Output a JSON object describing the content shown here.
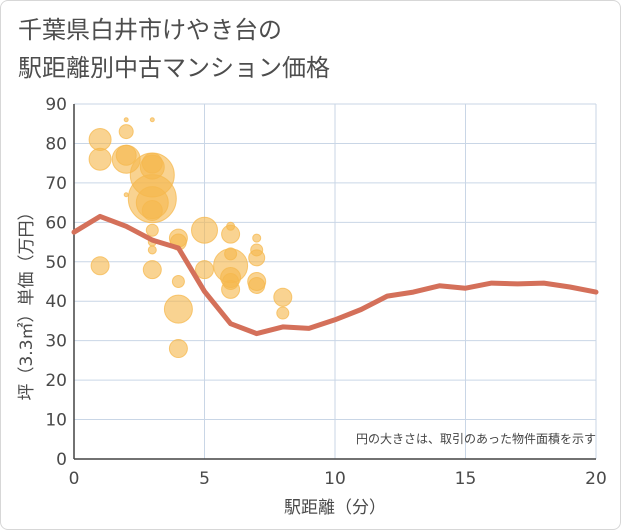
{
  "chart_data": {
    "type": "scatter",
    "title_lines": [
      "千葉県白井市けやき台の",
      "駅距離別中古マンション価格"
    ],
    "xlabel": "駅距離（分）",
    "ylabel": "坪（3.3㎡）単価（万円）",
    "xlim": [
      0,
      20
    ],
    "ylim": [
      0,
      90
    ],
    "xticks": [
      0,
      5,
      10,
      15,
      20
    ],
    "yticks": [
      0,
      10,
      20,
      30,
      40,
      50,
      60,
      70,
      80,
      90
    ],
    "grid": true,
    "annotation": "円の大きさは、取引のあった物件面積を示す",
    "colors": {
      "bubble": "#f6b84d",
      "line": "#d4705a",
      "grid": "#c9d6e6"
    },
    "bubbles": [
      {
        "x": 1,
        "y": 81,
        "size": 11
      },
      {
        "x": 1,
        "y": 76,
        "size": 11
      },
      {
        "x": 1,
        "y": 49,
        "size": 9
      },
      {
        "x": 2,
        "y": 86,
        "size": 2
      },
      {
        "x": 2,
        "y": 83,
        "size": 7
      },
      {
        "x": 2,
        "y": 77,
        "size": 10
      },
      {
        "x": 2,
        "y": 76,
        "size": 14
      },
      {
        "x": 2,
        "y": 67,
        "size": 2
      },
      {
        "x": 3,
        "y": 86,
        "size": 2
      },
      {
        "x": 3,
        "y": 75,
        "size": 10
      },
      {
        "x": 3,
        "y": 74,
        "size": 12
      },
      {
        "x": 3,
        "y": 72,
        "size": 22
      },
      {
        "x": 3,
        "y": 66,
        "size": 24
      },
      {
        "x": 3,
        "y": 65,
        "size": 16
      },
      {
        "x": 3,
        "y": 63,
        "size": 10
      },
      {
        "x": 3,
        "y": 58,
        "size": 6
      },
      {
        "x": 3,
        "y": 55,
        "size": 4
      },
      {
        "x": 3,
        "y": 53,
        "size": 4
      },
      {
        "x": 3,
        "y": 48,
        "size": 9
      },
      {
        "x": 4,
        "y": 56,
        "size": 9
      },
      {
        "x": 4,
        "y": 55,
        "size": 8
      },
      {
        "x": 4,
        "y": 45,
        "size": 6
      },
      {
        "x": 4,
        "y": 38,
        "size": 14
      },
      {
        "x": 4,
        "y": 28,
        "size": 9
      },
      {
        "x": 5,
        "y": 58,
        "size": 13
      },
      {
        "x": 5,
        "y": 48,
        "size": 9
      },
      {
        "x": 6,
        "y": 59,
        "size": 4
      },
      {
        "x": 6,
        "y": 57,
        "size": 9
      },
      {
        "x": 6,
        "y": 52,
        "size": 6
      },
      {
        "x": 6,
        "y": 49,
        "size": 17
      },
      {
        "x": 6,
        "y": 46,
        "size": 10
      },
      {
        "x": 6,
        "y": 45,
        "size": 8
      },
      {
        "x": 6,
        "y": 43,
        "size": 9
      },
      {
        "x": 7,
        "y": 56,
        "size": 4
      },
      {
        "x": 7,
        "y": 53,
        "size": 6
      },
      {
        "x": 7,
        "y": 51,
        "size": 8
      },
      {
        "x": 7,
        "y": 45,
        "size": 9
      },
      {
        "x": 7,
        "y": 44,
        "size": 8
      },
      {
        "x": 8,
        "y": 41,
        "size": 9
      },
      {
        "x": 8,
        "y": 37,
        "size": 6
      }
    ],
    "trend": {
      "x": [
        0,
        1,
        2,
        3,
        4,
        5,
        6,
        7,
        8,
        9,
        10,
        11,
        12,
        13,
        14,
        15,
        16,
        17,
        18,
        19,
        20
      ],
      "y": [
        57.5,
        61.5,
        59,
        55.5,
        53.5,
        42.5,
        34.3,
        31.8,
        33.5,
        33.1,
        35.3,
        37.9,
        41.3,
        42.3,
        43.9,
        43.3,
        44.6,
        44.4,
        44.6,
        43.6,
        42.3
      ]
    }
  }
}
